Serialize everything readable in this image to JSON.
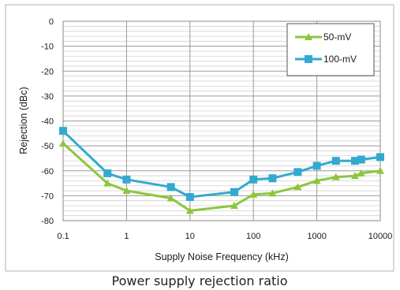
{
  "chart_data": {
    "type": "line",
    "x_scale": "log",
    "xlabel": "Supply Noise Frequency (kHz)",
    "ylabel": "Rejection (dBc)",
    "xlim": [
      0.1,
      10000
    ],
    "ylim": [
      -80,
      0
    ],
    "x_ticks": [
      "0.1",
      "1",
      "10",
      "100",
      "1000",
      "10000"
    ],
    "y_ticks": [
      "0",
      "-10",
      "-20",
      "-30",
      "-40",
      "-50",
      "-60",
      "-70",
      "-80"
    ],
    "grid": true,
    "legend_position": "top-right",
    "series": [
      {
        "name": "50-mV",
        "color": "#8dc63f",
        "marker": "triangle",
        "x": [
          0.1,
          0.5,
          1,
          5,
          10,
          50,
          100,
          200,
          500,
          1000,
          2000,
          4000,
          5000,
          10000
        ],
        "y": [
          -49,
          -65,
          -68,
          -71,
          -76,
          -74,
          -69.5,
          -69,
          -66.5,
          -64,
          -62.5,
          -62,
          -61,
          -60
        ]
      },
      {
        "name": "100-mV",
        "color": "#33a9d0",
        "marker": "square",
        "x": [
          0.1,
          0.5,
          1,
          5,
          10,
          50,
          100,
          200,
          500,
          1000,
          2000,
          4000,
          5000,
          10000
        ],
        "y": [
          -44,
          -61,
          -63.5,
          -66.5,
          -70.5,
          -68.5,
          -63.5,
          -63,
          -60.5,
          -58,
          -56,
          -56,
          -55.5,
          -54.5
        ]
      }
    ]
  },
  "caption": "Power supply rejection ratio"
}
